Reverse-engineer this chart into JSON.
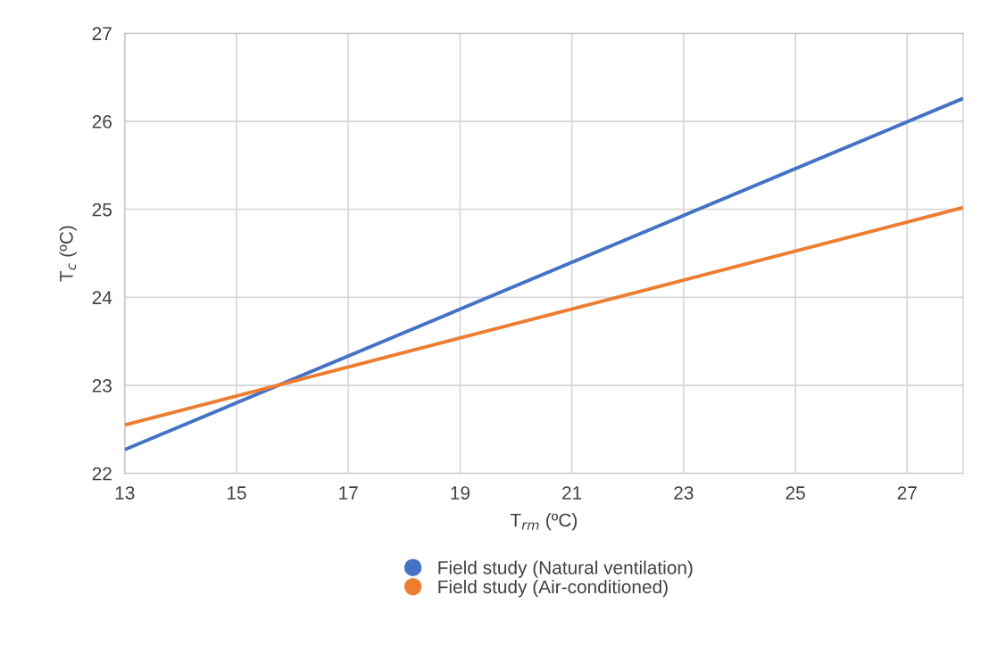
{
  "chart_data": {
    "type": "line",
    "xlabel": "T$_{rm}$ (ºC)",
    "ylabel": "T$_{c}$ (ºC)",
    "x": [
      13,
      28
    ],
    "series": [
      {
        "name": "Field study (Natural ventilation)",
        "color": "#4472c4",
        "values": [
          22.27,
          26.26
        ]
      },
      {
        "name": "Field study (Air-conditioned)",
        "color": "#ed7d31",
        "values": [
          22.55,
          25.02
        ]
      }
    ],
    "xlim": [
      13,
      28
    ],
    "xticks": [
      13,
      15,
      17,
      19,
      21,
      23,
      25,
      27
    ],
    "ylim": [
      22,
      27
    ],
    "yticks": [
      22,
      23,
      24,
      25,
      26,
      27
    ],
    "grid": true,
    "legend": "bottom",
    "line_style": "solid"
  }
}
